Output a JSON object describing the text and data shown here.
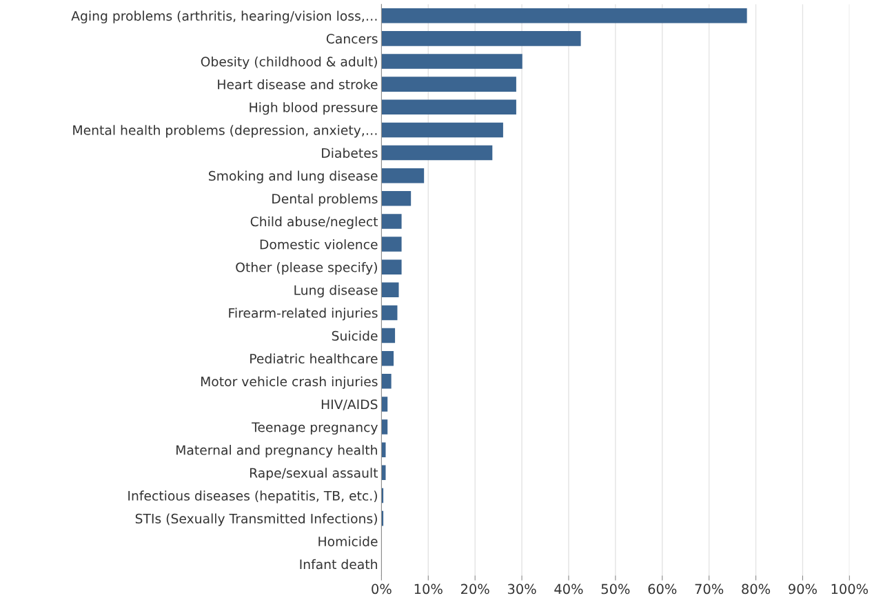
{
  "chart_data": {
    "type": "bar",
    "orientation": "horizontal",
    "categories": [
      "Aging problems (arthritis, hearing/vision loss,…",
      "Cancers",
      "Obesity (childhood & adult)",
      "Heart disease and stroke",
      "High blood pressure",
      "Mental health problems (depression, anxiety,…",
      "Diabetes",
      "Smoking and lung disease",
      "Dental problems",
      "Child abuse/neglect",
      "Domestic violence",
      "Other (please specify)",
      "Lung disease",
      "Firearm-related injuries",
      "Suicide",
      "Pediatric healthcare",
      "Motor vehicle crash injuries",
      "HIV/AIDS",
      "Teenage pregnancy",
      "Maternal and pregnancy health",
      "Rape/sexual assault",
      "Infectious diseases (hepatitis, TB, etc.)",
      "STIs (Sexually Transmitted Infections)",
      "Homicide",
      "Infant death"
    ],
    "values": [
      78.1,
      42.6,
      30.1,
      28.8,
      28.8,
      26.0,
      23.7,
      9.1,
      6.3,
      4.3,
      4.3,
      4.3,
      3.7,
      3.4,
      2.9,
      2.6,
      2.1,
      1.3,
      1.3,
      0.9,
      0.9,
      0.4,
      0.4,
      0,
      0
    ],
    "color": "#3b6591",
    "xlim": [
      0,
      100
    ],
    "xticks": [
      {
        "value": 0,
        "label": "0%"
      },
      {
        "value": 10,
        "label": "10%"
      },
      {
        "value": 20,
        "label": "20%"
      },
      {
        "value": 30,
        "label": "30%"
      },
      {
        "value": 40,
        "label": "40%"
      },
      {
        "value": 50,
        "label": "50%"
      },
      {
        "value": 60,
        "label": "60%"
      },
      {
        "value": 70,
        "label": "70%"
      },
      {
        "value": 80,
        "label": "80%"
      },
      {
        "value": 90,
        "label": "90%"
      },
      {
        "value": 100,
        "label": "100%"
      }
    ],
    "grid": "x",
    "legend": false
  }
}
